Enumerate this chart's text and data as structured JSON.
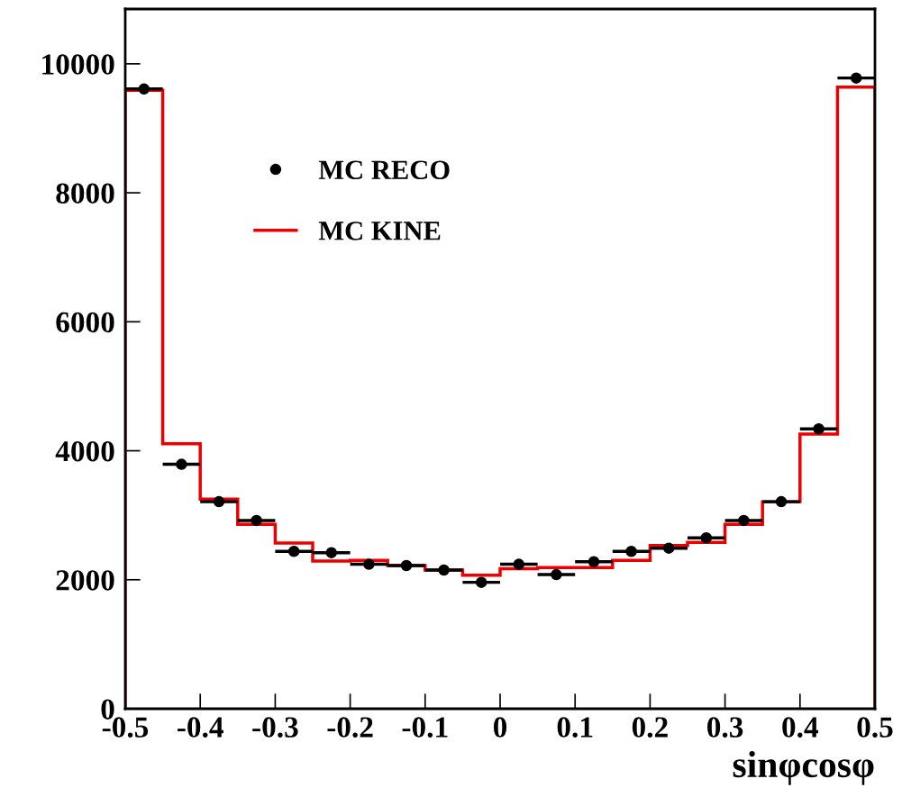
{
  "chart_data": {
    "type": "histogram",
    "xlabel": "sinφcosφ",
    "bins": [
      -0.5,
      -0.45,
      -0.4,
      -0.35,
      -0.3,
      -0.25,
      -0.2,
      -0.15,
      -0.1,
      -0.05,
      0,
      0.05,
      0.1,
      0.15,
      0.2,
      0.25,
      0.3,
      0.35,
      0.4,
      0.45,
      0.5
    ],
    "series": [
      {
        "name": "MC RECO",
        "type": "scatter",
        "color": "#000000",
        "marker": "circle",
        "x": [
          -0.475,
          -0.425,
          -0.375,
          -0.325,
          -0.275,
          -0.225,
          -0.175,
          -0.125,
          -0.075,
          -0.025,
          0.025,
          0.075,
          0.125,
          0.175,
          0.225,
          0.275,
          0.325,
          0.375,
          0.425,
          0.475
        ],
        "values": [
          9610,
          3790,
          3210,
          2920,
          2440,
          2420,
          2240,
          2220,
          2150,
          1960,
          2240,
          2080,
          2280,
          2440,
          2490,
          2650,
          2920,
          3210,
          4340,
          9780
        ],
        "xerrors": [
          0.025,
          0.025,
          0.025,
          0.025,
          0.025,
          0.025,
          0.025,
          0.025,
          0.025,
          0.025,
          0.025,
          0.025,
          0.025,
          0.025,
          0.025,
          0.025,
          0.025,
          0.025,
          0.025,
          0.025
        ]
      },
      {
        "name": "MC KINE",
        "color": "#ee0000",
        "values": [
          9590,
          4110,
          3250,
          2860,
          2570,
          2290,
          2300,
          2220,
          2150,
          2070,
          2170,
          2190,
          2190,
          2300,
          2530,
          2580,
          2860,
          3210,
          4260,
          9640
        ]
      }
    ],
    "xlim": [
      -0.5,
      0.5
    ],
    "xticks": [
      -0.5,
      -0.4,
      -0.3,
      -0.2,
      -0.1,
      0,
      0.1,
      0.2,
      0.3,
      0.4,
      0.5
    ],
    "ylim": [
      0,
      10850
    ],
    "yticks": [
      0,
      2000,
      4000,
      6000,
      8000,
      10000
    ],
    "legend": "top left",
    "grid": false
  }
}
